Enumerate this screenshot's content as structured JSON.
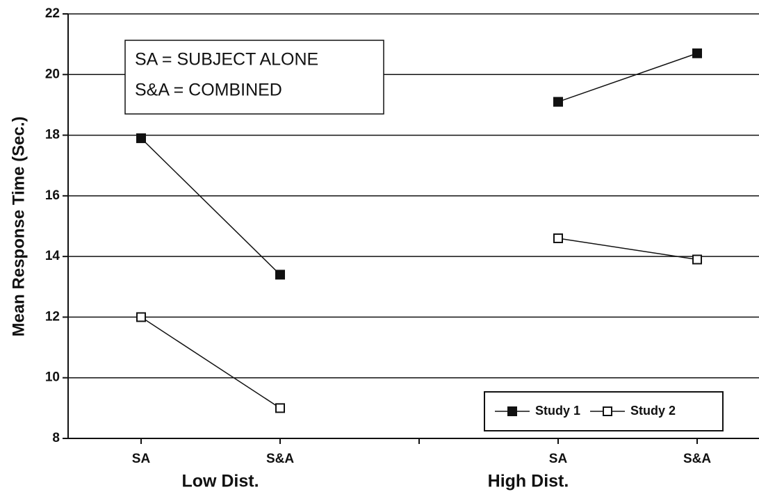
{
  "chart_data": {
    "type": "line",
    "y_label": "Mean Response Time (Sec.)",
    "categories": [
      "SA",
      "S&A",
      null,
      "SA",
      "S&A"
    ],
    "group_labels": [
      "Low Dist.",
      "High Dist."
    ],
    "series": [
      {
        "name": "Study 1",
        "color": "#111111",
        "marker": "filled",
        "values": [
          17.9,
          13.4,
          null,
          19.1,
          20.7
        ]
      },
      {
        "name": "Study 2",
        "color": "#111111",
        "marker": "hollow",
        "values": [
          12.0,
          9.0,
          null,
          14.6,
          13.9
        ]
      }
    ],
    "annotation": [
      "SA = SUBJECT ALONE",
      "S&A = COMBINED"
    ],
    "ylim": [
      8,
      22
    ],
    "yticks": [
      8,
      10,
      12,
      14,
      16,
      18,
      20,
      22
    ],
    "grid": true,
    "legend": "lower right"
  }
}
